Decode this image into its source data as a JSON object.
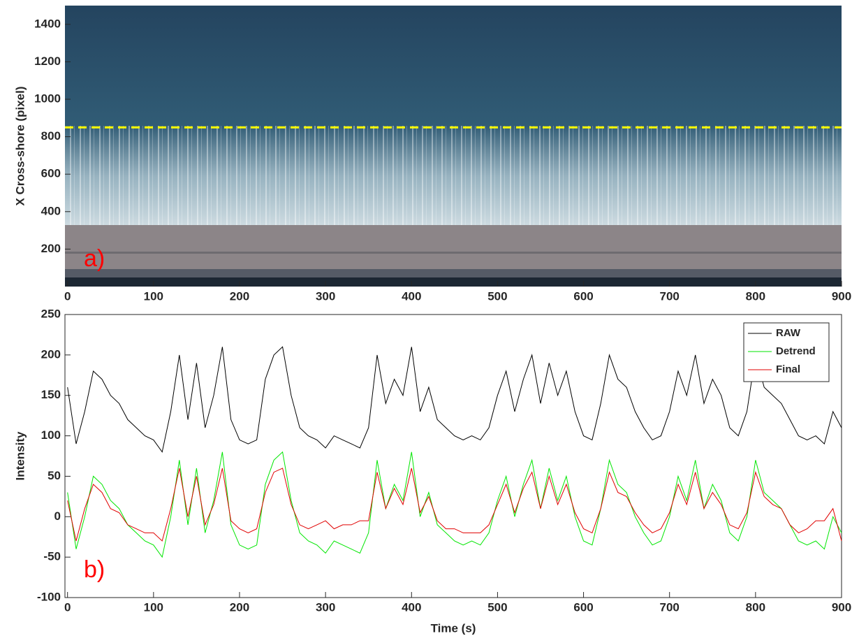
{
  "chart_data": [
    {
      "type": "image",
      "ylabel": "X Cross-shore (pixel)",
      "annotation": "a)",
      "xlim": [
        -3,
        900
      ],
      "xticks": [
        0,
        100,
        200,
        300,
        400,
        500,
        600,
        700,
        800,
        900
      ],
      "ylim": [
        0,
        1500
      ],
      "yticks": [
        200,
        400,
        600,
        800,
        1000,
        1200,
        1400
      ],
      "hline": {
        "value": 850,
        "color": "#ffff00"
      }
    },
    {
      "type": "line",
      "xlabel": "Time (s)",
      "ylabel": "Intensity",
      "annotation": "b)",
      "legend": "upper right",
      "xlim": [
        -3,
        900
      ],
      "xticks": [
        0,
        100,
        200,
        300,
        400,
        500,
        600,
        700,
        800,
        900
      ],
      "ylim": [
        -100,
        250
      ],
      "yticks": [
        -100,
        -50,
        0,
        50,
        100,
        150,
        200,
        250
      ],
      "x": [
        0,
        10,
        20,
        30,
        40,
        50,
        60,
        70,
        80,
        90,
        100,
        110,
        120,
        130,
        140,
        150,
        160,
        170,
        180,
        190,
        200,
        210,
        220,
        230,
        240,
        250,
        260,
        270,
        280,
        290,
        300,
        310,
        320,
        330,
        340,
        350,
        360,
        370,
        380,
        390,
        400,
        410,
        420,
        430,
        440,
        450,
        460,
        470,
        480,
        490,
        500,
        510,
        520,
        530,
        540,
        550,
        560,
        570,
        580,
        590,
        600,
        610,
        620,
        630,
        640,
        650,
        660,
        670,
        680,
        690,
        700,
        710,
        720,
        730,
        740,
        750,
        760,
        770,
        780,
        790,
        800,
        810,
        820,
        830,
        840,
        850,
        860,
        870,
        880,
        890,
        900
      ],
      "series": [
        {
          "name": "RAW",
          "color": "#000000",
          "values": [
            160,
            90,
            130,
            180,
            170,
            150,
            140,
            120,
            110,
            100,
            95,
            80,
            130,
            200,
            120,
            190,
            110,
            150,
            210,
            120,
            95,
            90,
            95,
            170,
            200,
            210,
            150,
            110,
            100,
            95,
            85,
            100,
            95,
            90,
            85,
            110,
            200,
            140,
            170,
            150,
            210,
            130,
            160,
            120,
            110,
            100,
            95,
            100,
            95,
            110,
            150,
            180,
            130,
            170,
            200,
            140,
            190,
            150,
            180,
            130,
            100,
            95,
            140,
            200,
            170,
            160,
            130,
            110,
            95,
            100,
            130,
            180,
            150,
            200,
            140,
            170,
            150,
            110,
            100,
            130,
            200,
            160,
            150,
            140,
            120,
            100,
            95,
            100,
            90,
            130,
            110
          ]
        },
        {
          "name": "Detrend",
          "color": "#00e600",
          "values": [
            30,
            -40,
            0,
            50,
            40,
            20,
            10,
            -10,
            -20,
            -30,
            -35,
            -50,
            0,
            70,
            -10,
            60,
            -20,
            20,
            80,
            -10,
            -35,
            -40,
            -35,
            40,
            70,
            80,
            20,
            -20,
            -30,
            -35,
            -45,
            -30,
            -35,
            -40,
            -45,
            -20,
            70,
            10,
            40,
            20,
            80,
            0,
            30,
            -10,
            -20,
            -30,
            -35,
            -30,
            -35,
            -20,
            20,
            50,
            0,
            40,
            70,
            10,
            60,
            20,
            50,
            0,
            -30,
            -35,
            10,
            70,
            40,
            30,
            0,
            -20,
            -35,
            -30,
            0,
            50,
            20,
            70,
            10,
            40,
            20,
            -20,
            -30,
            0,
            70,
            30,
            20,
            10,
            -10,
            -30,
            -35,
            -30,
            -40,
            0,
            -20
          ]
        },
        {
          "name": "Final",
          "color": "#e00000",
          "values": [
            20,
            -30,
            10,
            40,
            30,
            10,
            5,
            -10,
            -15,
            -20,
            -20,
            -30,
            10,
            60,
            0,
            50,
            -10,
            15,
            60,
            -5,
            -15,
            -20,
            -15,
            30,
            55,
            60,
            15,
            -10,
            -15,
            -10,
            -5,
            -15,
            -10,
            -10,
            -5,
            -5,
            55,
            10,
            35,
            15,
            60,
            5,
            25,
            -5,
            -15,
            -15,
            -20,
            -20,
            -20,
            -10,
            15,
            40,
            5,
            35,
            55,
            10,
            50,
            15,
            40,
            5,
            -15,
            -20,
            10,
            55,
            30,
            25,
            5,
            -10,
            -20,
            -15,
            5,
            40,
            15,
            55,
            10,
            30,
            15,
            -10,
            -15,
            5,
            55,
            25,
            15,
            10,
            -10,
            -20,
            -15,
            -5,
            -5,
            10,
            -30
          ]
        }
      ]
    }
  ]
}
